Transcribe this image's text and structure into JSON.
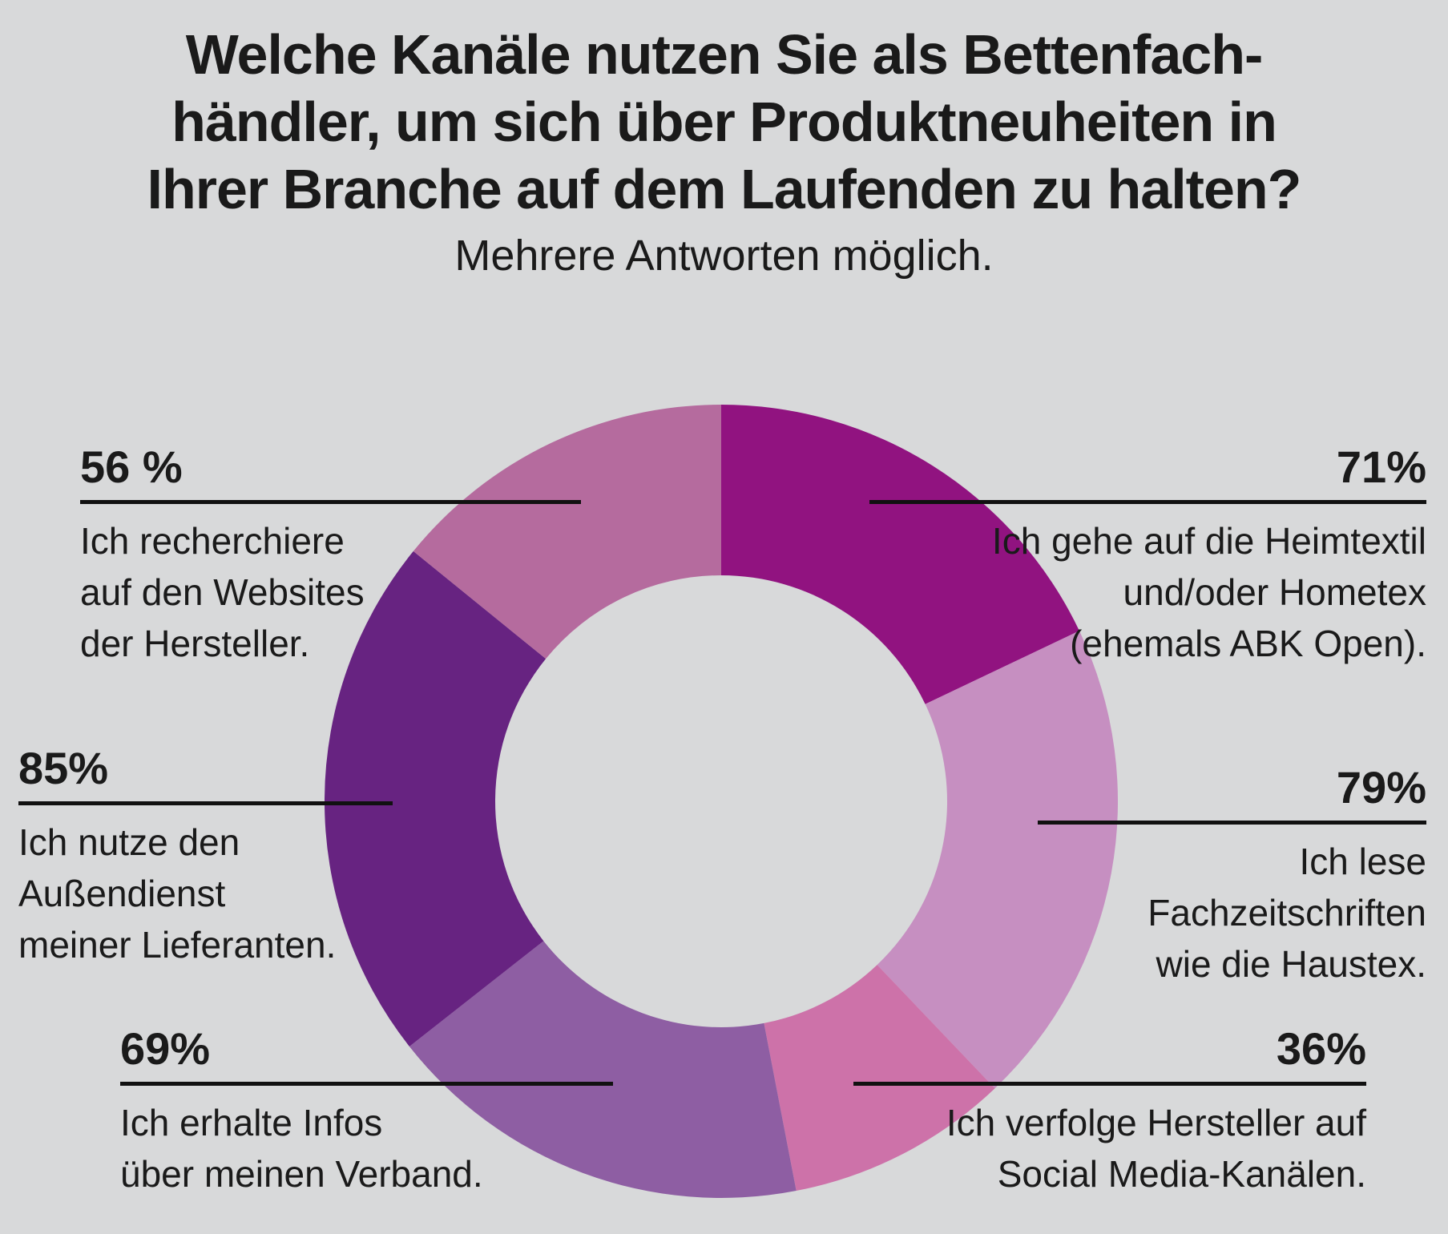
{
  "title": {
    "lines": [
      "Welche Kanäle nutzen Sie als Bettenfach-",
      "händler, um sich über Produktneuheiten in",
      "Ihrer Branche auf dem Laufenden zu halten?"
    ],
    "subtitle": "Mehrere Antworten möglich."
  },
  "colors": {
    "background": "#d8d9da",
    "text": "#1a1a1a",
    "callout_rule": "#111111"
  },
  "chart_data": {
    "type": "pie",
    "variant": "donut",
    "title": "Welche Kanäle nutzen Sie als Bettenfachhändler, um sich über Produktneuheiten in Ihrer Branche auf dem Laufenden zu halten?",
    "subtitle": "Mehrere Antworten möglich.",
    "unit": "%",
    "multiple_answers": true,
    "start_angle_deg": 0,
    "direction": "clockwise",
    "inner_radius_ratio": 0.57,
    "segments": [
      {
        "label": "Ich gehe auf die Heimtextil und/oder Hometex (ehemals ABK Open).",
        "value": 71,
        "color": "#911380"
      },
      {
        "label": "Ich lese Fachzeitschriften wie die Haustex.",
        "value": 79,
        "color": "#C68FC1"
      },
      {
        "label": "Ich verfolge Hersteller auf Social Media-Kanälen.",
        "value": 36,
        "color": "#CD72A9"
      },
      {
        "label": "Ich erhalte Infos über meinen Verband.",
        "value": 69,
        "color": "#8E5EA3"
      },
      {
        "label": "Ich nutze den Außendienst meiner Lieferanten.",
        "value": 85,
        "color": "#672381"
      },
      {
        "label": "Ich recherchiere auf den Websites der Hersteller.",
        "value": 56,
        "color": "#B56B9E"
      }
    ]
  },
  "callouts": [
    {
      "pct": "71%",
      "lines": [
        "Ich gehe auf die Heimtextil",
        "und/oder Hometex",
        "(ehemals ABK Open)."
      ]
    },
    {
      "pct": "79%",
      "lines": [
        "Ich lese",
        "Fachzeitschriften",
        "wie die Haustex."
      ]
    },
    {
      "pct": "36%",
      "lines": [
        "Ich verfolge Hersteller auf",
        "Social Media-Kanälen."
      ]
    },
    {
      "pct": "69%",
      "lines": [
        "Ich erhalte Infos",
        "über meinen Verband."
      ]
    },
    {
      "pct": "85%",
      "lines": [
        "Ich nutze den",
        "Außendienst",
        "meiner Lieferanten."
      ]
    },
    {
      "pct": "56 %",
      "lines": [
        "Ich recherchiere",
        "auf den Websites",
        "der Hersteller."
      ]
    }
  ]
}
